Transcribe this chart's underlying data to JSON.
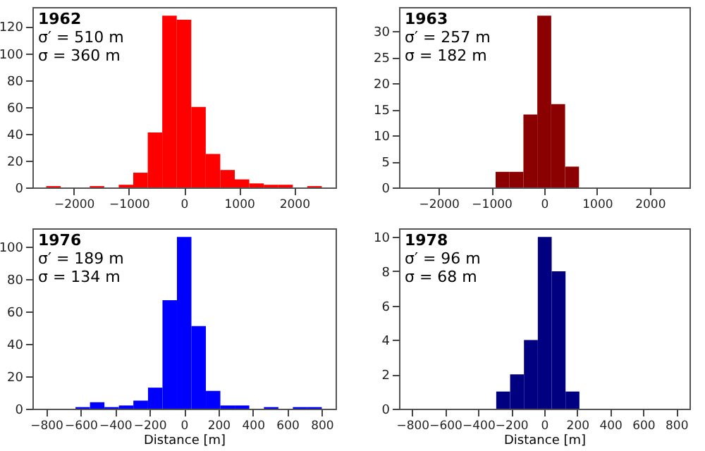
{
  "chart_data": [
    {
      "type": "histogram",
      "title": "1962",
      "annotations": [
        "σ′ = 510 m",
        "σ = 360 m"
      ],
      "color": "#ff0000",
      "bins": [
        -2500,
        -2236.84,
        -1973.68,
        -1710.53,
        -1447.37,
        -1184.21,
        -921.05,
        -657.89,
        -394.74,
        -131.58,
        131.58,
        394.74,
        657.89,
        921.05,
        1184.21,
        1447.37,
        1710.53,
        1973.68,
        2236.84,
        2500
      ],
      "values": [
        1,
        0,
        0,
        1,
        0,
        2,
        11,
        41,
        128,
        125,
        60,
        25,
        13,
        6,
        3,
        2,
        2,
        0,
        1
      ],
      "xlim": [
        -2750,
        2750
      ],
      "ylim": [
        0,
        134.4
      ],
      "xticks": [
        -2000,
        -1000,
        0,
        1000,
        2000
      ],
      "yticks": [
        0,
        20,
        40,
        60,
        80,
        100,
        120
      ]
    },
    {
      "type": "histogram",
      "title": "1963",
      "annotations": [
        "σ′ = 257 m",
        "σ = 182 m"
      ],
      "color": "#8b0000",
      "bins": [
        -921.05,
        -657.89,
        -394.74,
        -131.58,
        131.58,
        394.74,
        657.89
      ],
      "values": [
        3,
        3,
        14,
        33,
        16,
        4
      ],
      "xlim": [
        -2750,
        2750
      ],
      "ylim": [
        0,
        34.65
      ],
      "xticks": [
        -2000,
        -1000,
        0,
        1000,
        2000
      ],
      "yticks": [
        0,
        5,
        10,
        15,
        20,
        25,
        30
      ]
    },
    {
      "type": "histogram",
      "title": "1976",
      "annotations": [
        "σ′ = 189 m",
        "σ = 134 m"
      ],
      "xlabel": "Distance [m]",
      "color": "#0000ff",
      "bins": [
        -630,
        -546,
        -462,
        -378,
        -294,
        -209,
        -125,
        -41,
        43,
        127,
        211,
        295,
        379,
        464,
        548,
        632,
        716,
        800
      ],
      "values": [
        1,
        4,
        1,
        2,
        5,
        13,
        67,
        106,
        51,
        11,
        2,
        2,
        0,
        1,
        0,
        1,
        1
      ],
      "xlim": [
        -880,
        880
      ],
      "ylim": [
        0,
        111.3
      ],
      "xticks": [
        -800,
        -600,
        -400,
        -200,
        0,
        200,
        400,
        600,
        800
      ],
      "yticks": [
        0,
        20,
        40,
        60,
        80,
        100
      ]
    },
    {
      "type": "histogram",
      "title": "1978",
      "annotations": [
        "σ′ = 96 m",
        "σ = 68 m"
      ],
      "xlabel": "Distance [m]",
      "color": "#000080",
      "bins": [
        -291,
        -207,
        -123,
        -39,
        45,
        129,
        213
      ],
      "values": [
        1,
        2,
        4,
        10,
        8,
        1
      ],
      "xlim": [
        -880,
        880
      ],
      "ylim": [
        0,
        10.5
      ],
      "xticks": [
        -800,
        -600,
        -400,
        -200,
        0,
        200,
        400,
        600,
        800
      ],
      "yticks": [
        0,
        2,
        4,
        6,
        8,
        10
      ]
    }
  ]
}
